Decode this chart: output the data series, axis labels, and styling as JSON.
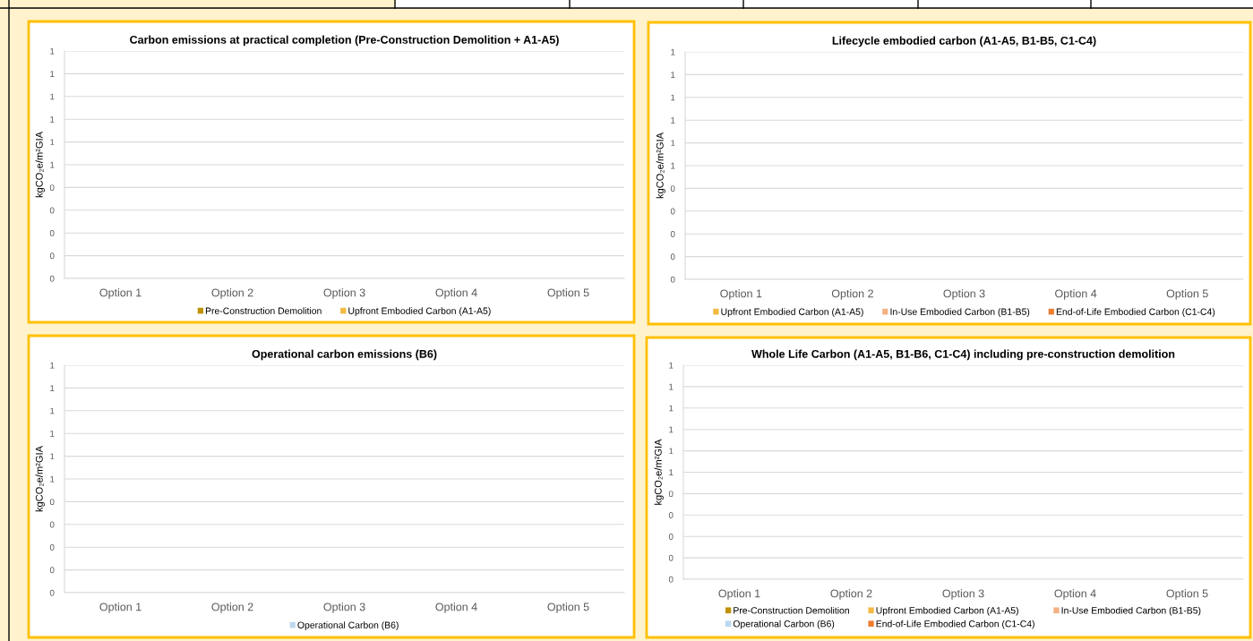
{
  "chart_data": [
    {
      "type": "bar",
      "title": "Carbon emissions at practical completion (Pre-Construction Demolition + A1-A5)",
      "ylabel": "kgCO₂e/m²GIA",
      "categories": [
        "Option 1",
        "Option 2",
        "Option 3",
        "Option 4",
        "Option 5"
      ],
      "ylim": [
        0,
        1
      ],
      "yticks": [
        0,
        {
          "value": 0.1,
          "label": "0"
        },
        {
          "value": 0.2,
          "label": "0"
        },
        {
          "value": 0.3,
          "label": "0"
        },
        {
          "value": 0.4,
          "label": "0"
        },
        {
          "value": 0.5,
          "label": "1"
        },
        {
          "value": 0.6,
          "label": "1"
        },
        {
          "value": 0.7,
          "label": "1"
        },
        {
          "value": 0.8,
          "label": "1"
        },
        {
          "value": 0.9,
          "label": "1"
        },
        1
      ],
      "grid": "y",
      "legend": "bottom",
      "series": [
        {
          "name": "Pre-Construction Demolition",
          "color": "#bf9000",
          "values": [
            0,
            0,
            0,
            0,
            0
          ]
        },
        {
          "name": "Upfront Embodied Carbon (A1-A5)",
          "color": "#f4b942",
          "values": [
            0,
            0,
            0,
            0,
            0
          ]
        }
      ]
    },
    {
      "type": "bar",
      "title": "Lifecycle embodied carbon (A1-A5, B1-B5, C1-C4)",
      "ylabel": "kgCO₂e/m²GIA",
      "categories": [
        "Option 1",
        "Option 2",
        "Option 3",
        "Option 4",
        "Option 5"
      ],
      "ylim": [
        0,
        1
      ],
      "yticks": [
        0,
        {
          "value": 0.1,
          "label": "0"
        },
        {
          "value": 0.2,
          "label": "0"
        },
        {
          "value": 0.3,
          "label": "0"
        },
        {
          "value": 0.4,
          "label": "0"
        },
        {
          "value": 0.5,
          "label": "1"
        },
        {
          "value": 0.6,
          "label": "1"
        },
        {
          "value": 0.7,
          "label": "1"
        },
        {
          "value": 0.8,
          "label": "1"
        },
        {
          "value": 0.9,
          "label": "1"
        },
        1
      ],
      "grid": "y",
      "legend": "bottom",
      "series": [
        {
          "name": "Upfront Embodied Carbon (A1-A5)",
          "color": "#f4b942",
          "values": [
            0,
            0,
            0,
            0,
            0
          ]
        },
        {
          "name": "In-Use Embodied Carbon (B1-B5)",
          "color": "#f4b183",
          "values": [
            0,
            0,
            0,
            0,
            0
          ]
        },
        {
          "name": "End-of-Life Embodied Carbon (C1-C4)",
          "color": "#ed7d31",
          "values": [
            0,
            0,
            0,
            0,
            0
          ]
        }
      ]
    },
    {
      "type": "bar",
      "title": "Operational carbon emissions (B6)",
      "ylabel": "kgCO₂e/m²GIA",
      "categories": [
        "Option 1",
        "Option 2",
        "Option 3",
        "Option 4",
        "Option 5"
      ],
      "ylim": [
        0,
        1
      ],
      "yticks": [
        0,
        {
          "value": 0.1,
          "label": "0"
        },
        {
          "value": 0.2,
          "label": "0"
        },
        {
          "value": 0.3,
          "label": "0"
        },
        {
          "value": 0.4,
          "label": "0"
        },
        {
          "value": 0.5,
          "label": "1"
        },
        {
          "value": 0.6,
          "label": "1"
        },
        {
          "value": 0.7,
          "label": "1"
        },
        {
          "value": 0.8,
          "label": "1"
        },
        {
          "value": 0.9,
          "label": "1"
        },
        1
      ],
      "grid": "y",
      "legend": "bottom",
      "series": [
        {
          "name": "Operational Carbon (B6)",
          "color": "#bdd7ee",
          "values": [
            0,
            0,
            0,
            0,
            0
          ]
        }
      ]
    },
    {
      "type": "bar",
      "title": "Whole Life Carbon (A1-A5, B1-B6, C1-C4) including pre-construction demolition",
      "ylabel": "kgCO₂e/m²GIA",
      "categories": [
        "Option 1",
        "Option 2",
        "Option 3",
        "Option 4",
        "Option 5"
      ],
      "ylim": [
        0,
        1
      ],
      "yticks": [
        0,
        {
          "value": 0.1,
          "label": "0"
        },
        {
          "value": 0.2,
          "label": "0"
        },
        {
          "value": 0.3,
          "label": "0"
        },
        {
          "value": 0.4,
          "label": "0"
        },
        {
          "value": 0.5,
          "label": "1"
        },
        {
          "value": 0.6,
          "label": "1"
        },
        {
          "value": 0.7,
          "label": "1"
        },
        {
          "value": 0.8,
          "label": "1"
        },
        {
          "value": 0.9,
          "label": "1"
        },
        1
      ],
      "grid": "y",
      "legend": "bottom",
      "series": [
        {
          "name": "Pre-Construction Demolition",
          "color": "#bf9000",
          "values": [
            0,
            0,
            0,
            0,
            0
          ]
        },
        {
          "name": "Upfront Embodied Carbon (A1-A5)",
          "color": "#f4b942",
          "values": [
            0,
            0,
            0,
            0,
            0
          ]
        },
        {
          "name": "In-Use Embodied Carbon (B1-B5)",
          "color": "#f4b183",
          "values": [
            0,
            0,
            0,
            0,
            0
          ]
        },
        {
          "name": "Operational Carbon (B6)",
          "color": "#bdd7ee",
          "values": [
            0,
            0,
            0,
            0,
            0
          ]
        },
        {
          "name": "End-of-Life Embodied Carbon (C1-C4)",
          "color": "#ed7d31",
          "values": [
            0,
            0,
            0,
            0,
            0
          ]
        }
      ]
    }
  ]
}
